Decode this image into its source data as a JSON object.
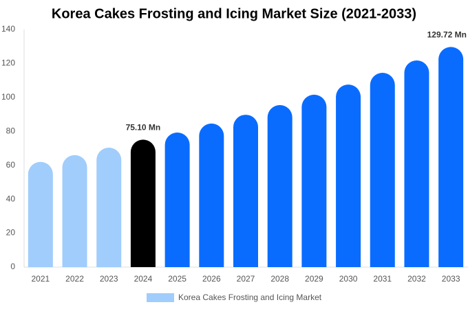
{
  "chart_data": {
    "type": "bar",
    "title": "Korea Cakes Frosting and Icing Market Size (2021-2033)",
    "categories": [
      "2021",
      "2022",
      "2023",
      "2024",
      "2025",
      "2026",
      "2027",
      "2028",
      "2029",
      "2030",
      "2031",
      "2032",
      "2033"
    ],
    "series": [
      {
        "name": "Korea Cakes Frosting and Icing Market",
        "color": "#a0cdfc",
        "values": [
          62,
          66,
          70.4,
          75.1,
          79.3,
          84.6,
          89.8,
          95.5,
          101.6,
          107.6,
          114.5,
          121.8,
          129.72
        ],
        "value_labels": [
          null,
          null,
          null,
          "75.10 Mn",
          null,
          null,
          null,
          null,
          null,
          null,
          null,
          null,
          "129.72 Mn"
        ],
        "colors": [
          "#a0cdfc",
          "#a0cdfc",
          "#a0cdfc",
          "#000000",
          "#0a6cff",
          "#0a6cff",
          "#0a6cff",
          "#0a6cff",
          "#0a6cff",
          "#0a6cff",
          "#0a6cff",
          "#0a6cff",
          "#0a6cff"
        ]
      }
    ],
    "ylim": [
      0,
      140
    ],
    "yticks": [
      0,
      20,
      40,
      60,
      80,
      100,
      120,
      140
    ],
    "grid": false
  }
}
